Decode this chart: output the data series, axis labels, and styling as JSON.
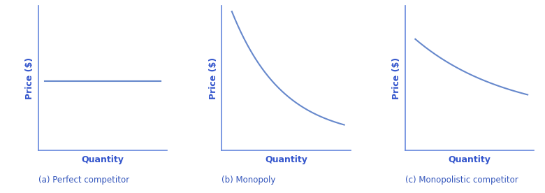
{
  "title_a": "(a) Perfect competitor",
  "title_b": "(b) Monopoly",
  "title_c": "(c) Monopolistic competitor",
  "xlabel": "Quantity",
  "ylabel": "Price ($)",
  "line_color": "#6688cc",
  "axis_color": "#6688dd",
  "label_color": "#3355cc",
  "subtitle_color": "#3355bb",
  "background_color": "#ffffff",
  "fig_width": 7.8,
  "fig_height": 2.76,
  "dpi": 100
}
